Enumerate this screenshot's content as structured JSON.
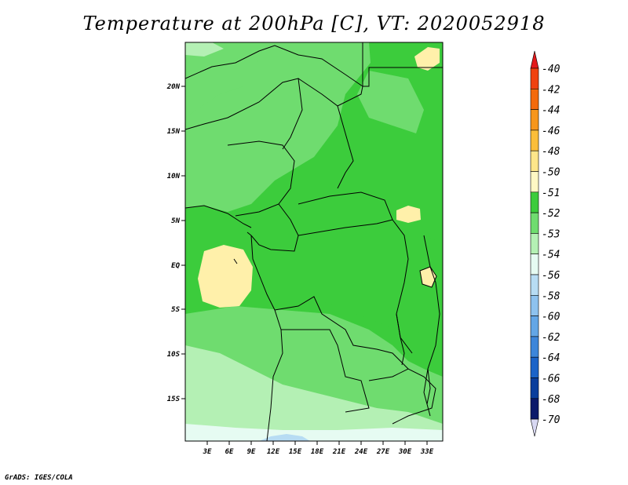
{
  "title": "Temperature at 200hPa [C], VT: 2020052918",
  "credit": "GrADS: IGES/COLA",
  "y_axis_labels": [
    "20N",
    "15N",
    "10N",
    "5N",
    "EQ",
    "5S",
    "10S",
    "15S"
  ],
  "x_axis_labels": [
    "3E",
    "6E",
    "9E",
    "12E",
    "15E",
    "18E",
    "21E",
    "24E",
    "27E",
    "30E",
    "33E"
  ],
  "colorbar": {
    "labels": [
      "-40",
      "-42",
      "-44",
      "-46",
      "-48",
      "-50",
      "-51",
      "-52",
      "-53",
      "-54",
      "-56",
      "-58",
      "-60",
      "-62",
      "-64",
      "-66",
      "-68",
      "-70"
    ],
    "colors": [
      "#e31a1c",
      "#f0420f",
      "#f46a0c",
      "#f7961b",
      "#fbbe3a",
      "#fde68a",
      "#fff8c4",
      "#3ccc3c",
      "#6fdc6f",
      "#b4f0b4",
      "#e6fbf2",
      "#b7dcf3",
      "#8ec2ee",
      "#63a6e6",
      "#3d86da",
      "#1b63c8",
      "#0a3e9c",
      "#0c1a6a",
      "#d8d8f2"
    ],
    "top_triangle_color": "#e31a1c",
    "bottom_triangle_color": "#d8d8f2"
  },
  "map": {
    "lon_range": [
      0,
      35
    ],
    "lat_range": [
      -20,
      25
    ],
    "projection": "lat-lon",
    "fill_colors": {
      "level_-52": "#3ccc3c",
      "level_-53": "#6fdc6f",
      "level_-54": "#b4f0b4",
      "level_-51": "#fff0aa",
      "level_-56": "#b7dcf3",
      "level_-55": "#e6fbf2"
    }
  }
}
